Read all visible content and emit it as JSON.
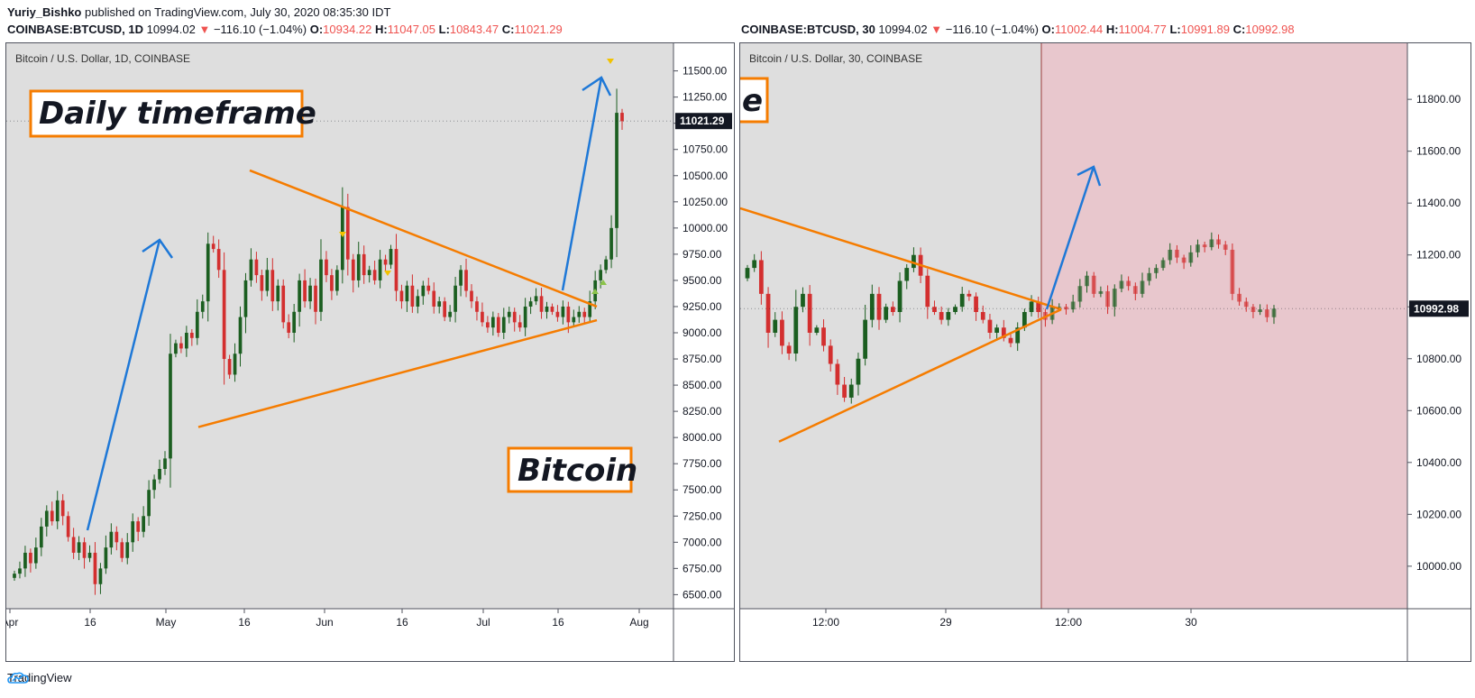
{
  "header": {
    "author": "Yuriy_Bishko",
    "published": "published on TradingView.com, July 30, 2020 08:35:30 IDT"
  },
  "ohlc_left": {
    "symbol": "COINBASE:BTCUSD, 1D",
    "last": "10994.02",
    "change": "−116.10 (−1.04%)",
    "o": "10934.22",
    "h": "11047.05",
    "l": "10843.47",
    "c": "11021.29"
  },
  "ohlc_right": {
    "symbol": "COINBASE:BTCUSD, 30",
    "last": "10994.02",
    "change": "−116.10 (−1.04%)",
    "o": "11002.44",
    "h": "11004.77",
    "l": "10991.89",
    "c": "10992.98"
  },
  "colors": {
    "up": "#1b5e20",
    "down": "#d32f2f",
    "orange": "#f57c00",
    "blue": "#1e78d7",
    "bg": "#dedede",
    "future": "#e8c7cd"
  },
  "footer": {
    "brand": "TradingView"
  },
  "chart_data": [
    {
      "type": "candlestick",
      "title": "Bitcoin / U.S. Dollar, 1D, COINBASE",
      "xlabel": "",
      "ylabel": "",
      "ylim": [
        6400,
        11600
      ],
      "x_ticks": [
        "Apr",
        "16",
        "May",
        "16",
        "Jun",
        "16",
        "Jul",
        "16",
        "Aug"
      ],
      "y_ticks": [
        "11500.00",
        "11250.00",
        "11000.00",
        "10750.00",
        "10500.00",
        "10250.00",
        "10000.00",
        "9750.00",
        "9500.00",
        "9250.00",
        "9000.00",
        "8750.00",
        "8500.00",
        "8250.00",
        "8000.00",
        "7750.00",
        "7500.00",
        "7250.00",
        "7000.00",
        "6750.00",
        "6500.00"
      ],
      "last_price_label": "11021.29",
      "annotations": [
        "Daily timeframe",
        "Bitcoin"
      ],
      "close_path": [
        6700,
        6750,
        6900,
        6800,
        6950,
        7150,
        7300,
        7200,
        7400,
        7250,
        7050,
        6900,
        7000,
        6850,
        6900,
        6600,
        6750,
        6950,
        7100,
        7000,
        6850,
        7000,
        7200,
        7100,
        7250,
        7500,
        7600,
        7700,
        7800,
        8800,
        8900,
        8850,
        9000,
        8950,
        9200,
        9300,
        9850,
        9800,
        9600,
        8750,
        8600,
        8800,
        9150,
        9500,
        9700,
        9550,
        9400,
        9600,
        9300,
        9450,
        9100,
        9000,
        9200,
        9500,
        9300,
        9450,
        9200,
        9700,
        9550,
        9400,
        9600,
        10200,
        9700,
        9500,
        9750,
        9550,
        9600,
        9500,
        9700,
        9650,
        9800,
        9400,
        9300,
        9450,
        9250,
        9350,
        9450,
        9400,
        9250,
        9300,
        9150,
        9200,
        9450,
        9600,
        9400,
        9300,
        9200,
        9100,
        9050,
        9150,
        9000,
        9150,
        9200,
        9100,
        9050,
        9250,
        9300,
        9350,
        9200,
        9250,
        9200,
        9150,
        9250,
        9100,
        9150,
        9200,
        9150,
        9300,
        9500,
        9600,
        9700,
        10000,
        11100,
        11020
      ],
      "triangle": {
        "upper": [
          9250,
          10550
        ],
        "lower": [
          9120,
          8100
        ]
      }
    },
    {
      "type": "candlestick",
      "title": "Bitcoin / U.S. Dollar, 30, COINBASE",
      "xlabel": "",
      "ylabel": "",
      "ylim": [
        9850,
        11950
      ],
      "x_ticks": [
        "12:00",
        "29",
        "12:00",
        "30"
      ],
      "y_ticks": [
        "11800.00",
        "11600.00",
        "11400.00",
        "11200.00",
        "11000.00",
        "10800.00",
        "10600.00",
        "10400.00",
        "10200.00",
        "10000.00"
      ],
      "last_price_label": "10992.98",
      "annotations": [
        "e"
      ],
      "close_path": [
        11150,
        11180,
        11050,
        10900,
        10950,
        10850,
        10820,
        11000,
        11050,
        10900,
        10920,
        10850,
        10780,
        10700,
        10650,
        10700,
        10800,
        10950,
        11050,
        10950,
        11000,
        10980,
        11100,
        11150,
        11200,
        11120,
        11000,
        10980,
        10950,
        10980,
        11000,
        11050,
        11040,
        10980,
        10950,
        10900,
        10920,
        10880,
        10860,
        10920,
        10980,
        11020,
        10980,
        10950,
        11000,
        11000,
        10990,
        11020,
        11080,
        11120,
        11050,
        11060,
        11000,
        11070,
        11100,
        11080,
        11050,
        11100,
        11130,
        11150,
        11180,
        11220,
        11190,
        11170,
        11210,
        11240,
        11230,
        11260,
        11240,
        11220,
        11050,
        11020,
        11000,
        10980,
        10990,
        10960,
        10992.98
      ],
      "triangle": {
        "upper": [
          10990,
          11380
        ],
        "lower": [
          10990,
          10480
        ]
      }
    }
  ]
}
